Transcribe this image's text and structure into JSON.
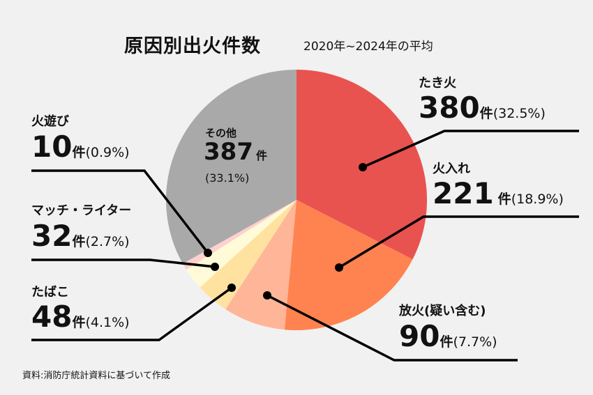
{
  "chart_data": {
    "type": "pie",
    "title": "原因別出火件数",
    "subtitle": "2020年~2024年の平均",
    "unit": "件",
    "slices": [
      {
        "label": "たき火",
        "value": 380,
        "percent": "(32.5%)",
        "color": "#E8534F"
      },
      {
        "label": "火入れ",
        "value": 221,
        "percent": "(18.9%)",
        "color": "#FF8350"
      },
      {
        "label": "放火(疑い含む)",
        "value": 90,
        "percent": "(7.7%)",
        "color": "#FFB597"
      },
      {
        "label": "たばこ",
        "value": 48,
        "percent": "(4.1%)",
        "color": "#FFE2A0"
      },
      {
        "label": "マッチ・ライター",
        "value": 32,
        "percent": "(2.7%)",
        "color": "#FFFBD8"
      },
      {
        "label": "火遊び",
        "value": 10,
        "percent": "(0.9%)",
        "color": "#FFD0CE"
      },
      {
        "label": "その他",
        "value": 387,
        "percent": "(33.1%)",
        "color": "#A9A9A9"
      }
    ],
    "source": "資料:消防庁統計資料に基づいて作成"
  }
}
